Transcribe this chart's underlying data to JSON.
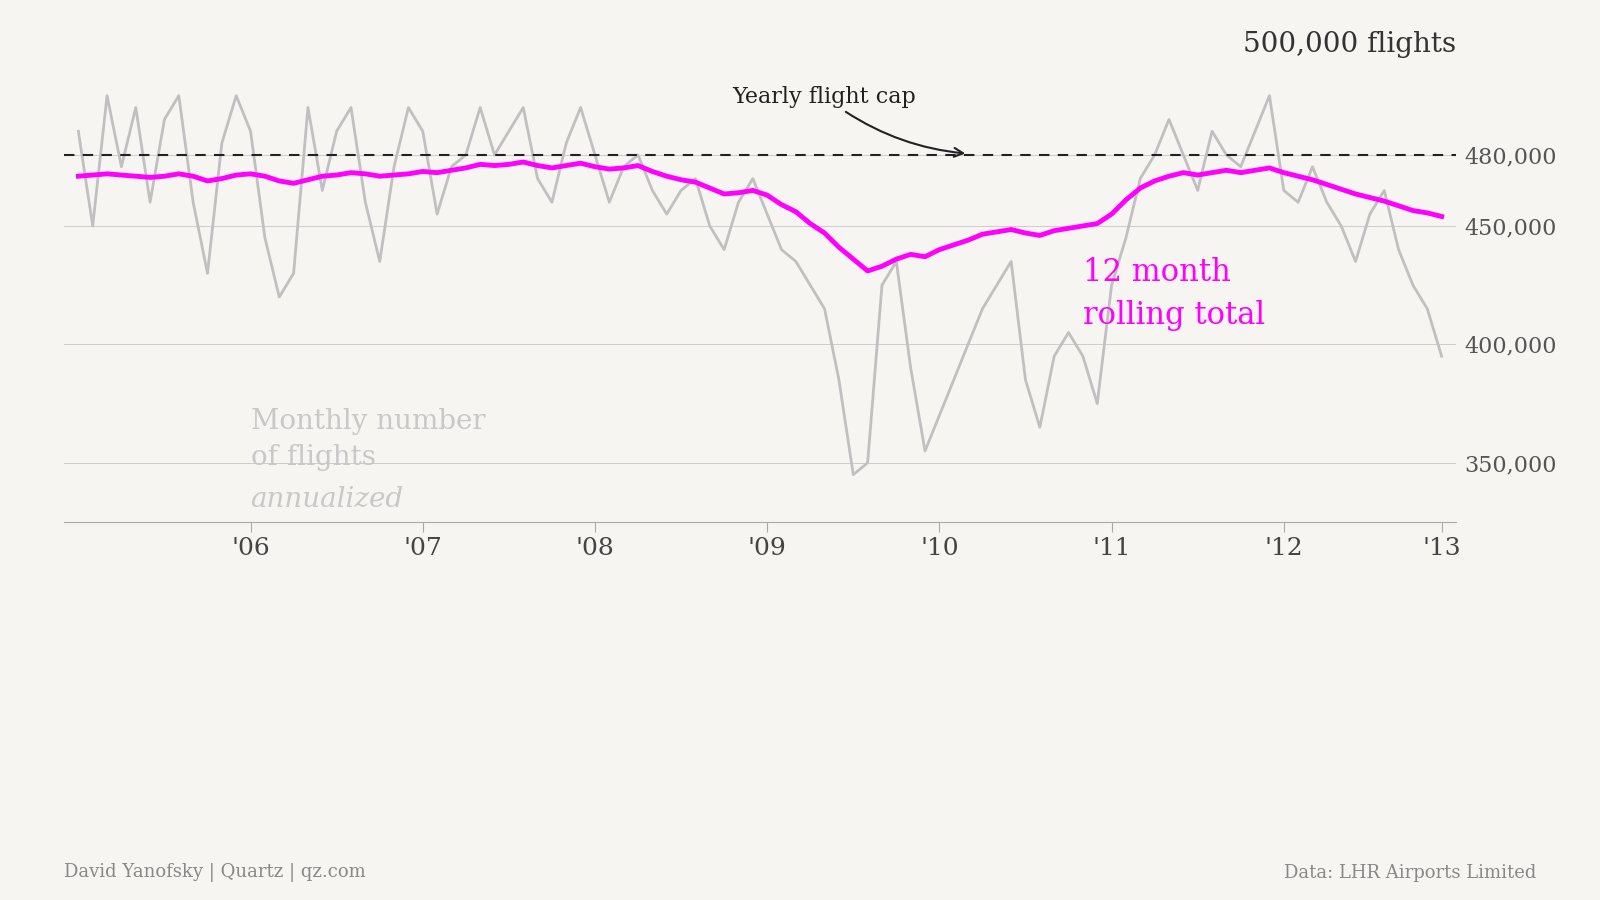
{
  "flight_cap": 480000,
  "y_min": 325000,
  "y_max": 515000,
  "background_color": "#f7f5f2",
  "monthly_color": "#c0c0c0",
  "rolling_color": "#ff00ff",
  "cap_line_color": "#222222",
  "footer_left": "David Yanofsky | Quartz | qz.com",
  "footer_right": "Data: LHR Airports Limited",
  "x_tick_labels": [
    "'06",
    "'07",
    "'08",
    "'09",
    "'10",
    "'11",
    "'12",
    "'13"
  ],
  "monthly_annualized": [
    490000,
    450000,
    505000,
    475000,
    500000,
    460000,
    495000,
    505000,
    460000,
    430000,
    485000,
    505000,
    490000,
    445000,
    420000,
    430000,
    500000,
    465000,
    490000,
    500000,
    460000,
    435000,
    475000,
    500000,
    490000,
    455000,
    475000,
    480000,
    500000,
    480000,
    490000,
    500000,
    470000,
    460000,
    485000,
    500000,
    480000,
    460000,
    475000,
    480000,
    465000,
    455000,
    465000,
    470000,
    450000,
    440000,
    460000,
    470000,
    455000,
    440000,
    435000,
    425000,
    415000,
    385000,
    345000,
    350000,
    425000,
    435000,
    390000,
    355000,
    370000,
    385000,
    400000,
    415000,
    425000,
    435000,
    385000,
    365000,
    395000,
    405000,
    395000,
    375000,
    425000,
    445000,
    470000,
    480000,
    495000,
    480000,
    465000,
    490000,
    480000,
    475000,
    490000,
    505000,
    465000,
    460000,
    475000,
    460000,
    450000,
    435000,
    455000,
    465000,
    440000,
    425000,
    415000,
    395000
  ],
  "rolling_total": [
    471000,
    471500,
    472000,
    471500,
    471000,
    470500,
    471000,
    472000,
    471000,
    469000,
    470000,
    471500,
    472000,
    471000,
    469000,
    468000,
    469500,
    471000,
    471500,
    472500,
    472000,
    471000,
    471500,
    472000,
    473000,
    472500,
    473500,
    474500,
    476000,
    475500,
    476000,
    477000,
    475500,
    474500,
    475500,
    476500,
    475000,
    474000,
    474500,
    475500,
    473000,
    471000,
    469500,
    468500,
    466000,
    463500,
    464000,
    465000,
    463000,
    459000,
    456000,
    451000,
    447000,
    441000,
    436000,
    431000,
    433000,
    436000,
    438000,
    437000,
    440000,
    442000,
    444000,
    446500,
    447500,
    448500,
    447000,
    446000,
    448000,
    449000,
    450000,
    451000,
    455000,
    461000,
    466000,
    469000,
    471000,
    472500,
    471500,
    472500,
    473500,
    472500,
    473500,
    474500,
    472500,
    471000,
    469500,
    467500,
    465500,
    463500,
    462000,
    460500,
    458500,
    456500,
    455500,
    454000
  ]
}
